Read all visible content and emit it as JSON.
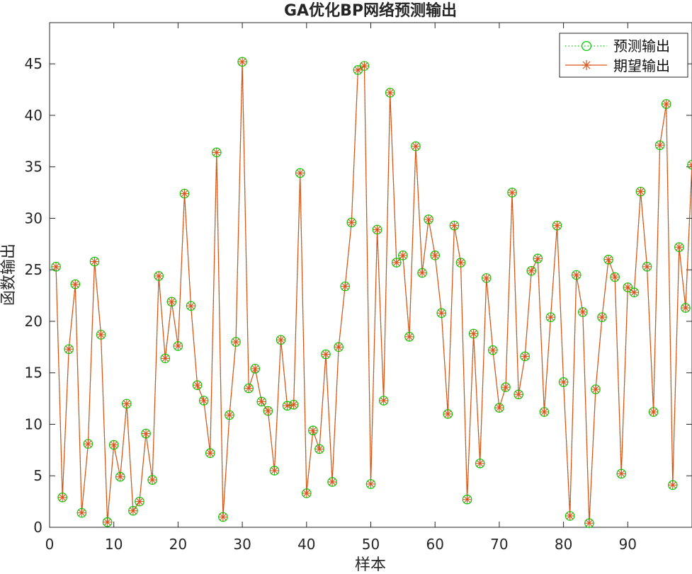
{
  "chart_data": {
    "type": "line",
    "title": "GA优化BP网络预测输出",
    "xlabel": "样本",
    "ylabel": "函数输出",
    "xlim": [
      0,
      100
    ],
    "ylim": [
      0,
      49
    ],
    "xticks": [
      0,
      10,
      20,
      30,
      40,
      50,
      60,
      70,
      80,
      90
    ],
    "yticks": [
      0,
      5,
      10,
      15,
      20,
      25,
      30,
      35,
      40,
      45
    ],
    "grid": false,
    "legend_position": "top-right",
    "x": [
      1,
      2,
      3,
      4,
      5,
      6,
      7,
      8,
      9,
      10,
      11,
      12,
      13,
      14,
      15,
      16,
      17,
      18,
      19,
      20,
      21,
      22,
      23,
      24,
      25,
      26,
      27,
      28,
      29,
      30,
      31,
      32,
      33,
      34,
      35,
      36,
      37,
      38,
      39,
      40,
      41,
      42,
      43,
      44,
      45,
      46,
      47,
      48,
      49,
      50,
      51,
      52,
      53,
      54,
      55,
      56,
      57,
      58,
      59,
      60,
      61,
      62,
      63,
      64,
      65,
      66,
      67,
      68,
      69,
      70,
      71,
      72,
      73,
      74,
      75,
      76,
      77,
      78,
      79,
      80,
      81,
      82,
      83,
      84,
      85,
      86,
      87,
      88,
      89,
      90,
      91,
      92,
      93,
      94,
      95,
      96,
      97,
      98,
      99,
      100
    ],
    "series": [
      {
        "name": "预测输出",
        "style": "dotted-line circle-markers",
        "color": "#00cc00",
        "values": [
          25.3,
          2.9,
          17.3,
          23.6,
          1.4,
          8.1,
          25.8,
          18.7,
          0.5,
          8.0,
          4.9,
          12.0,
          1.6,
          2.5,
          9.1,
          4.6,
          24.4,
          16.4,
          21.9,
          17.6,
          32.4,
          21.5,
          13.8,
          12.3,
          7.2,
          36.4,
          1.0,
          10.9,
          18.0,
          45.2,
          13.5,
          15.4,
          12.2,
          11.3,
          5.5,
          18.2,
          11.8,
          11.9,
          34.4,
          3.3,
          9.4,
          7.6,
          16.8,
          4.4,
          17.5,
          23.4,
          29.6,
          44.4,
          44.8,
          4.2,
          28.9,
          12.3,
          42.2,
          25.7,
          26.4,
          18.5,
          37.0,
          24.7,
          29.9,
          26.4,
          20.8,
          11.0,
          29.3,
          25.7,
          2.7,
          18.8,
          6.2,
          24.2,
          17.2,
          11.6,
          13.6,
          32.5,
          12.9,
          16.6,
          24.9,
          26.1,
          11.2,
          20.4,
          29.3,
          14.1,
          1.1,
          24.5,
          20.9,
          0.4,
          13.4,
          20.4,
          26.0,
          24.3,
          5.2,
          23.3,
          22.8,
          32.6,
          25.3,
          11.2,
          37.1,
          41.1,
          4.1,
          27.2,
          21.3,
          35.2
        ]
      },
      {
        "name": "期望输出",
        "style": "solid-line star-markers",
        "color": "#d95319",
        "values": [
          25.3,
          2.9,
          17.3,
          23.6,
          1.4,
          8.1,
          25.8,
          18.7,
          0.5,
          8.0,
          4.9,
          12.0,
          1.6,
          2.5,
          9.1,
          4.6,
          24.4,
          16.4,
          21.9,
          17.6,
          32.4,
          21.5,
          13.8,
          12.3,
          7.2,
          36.4,
          1.0,
          10.9,
          18.0,
          45.2,
          13.5,
          15.4,
          12.2,
          11.3,
          5.5,
          18.2,
          11.8,
          11.9,
          34.4,
          3.3,
          9.4,
          7.6,
          16.8,
          4.4,
          17.5,
          23.4,
          29.6,
          44.4,
          44.8,
          4.2,
          28.9,
          12.3,
          42.2,
          25.7,
          26.4,
          18.5,
          37.0,
          24.7,
          29.9,
          26.4,
          20.8,
          11.0,
          29.3,
          25.7,
          2.7,
          18.8,
          6.2,
          24.2,
          17.2,
          11.6,
          13.6,
          32.5,
          12.9,
          16.6,
          24.9,
          26.1,
          11.2,
          20.4,
          29.3,
          14.1,
          1.1,
          24.5,
          20.9,
          0.4,
          13.4,
          20.4,
          26.0,
          24.3,
          5.2,
          23.3,
          22.8,
          32.6,
          25.3,
          11.2,
          37.1,
          41.1,
          4.1,
          27.2,
          21.3,
          35.2
        ]
      }
    ]
  }
}
